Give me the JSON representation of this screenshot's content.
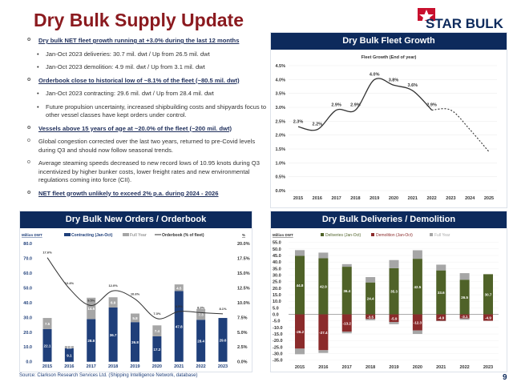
{
  "title": "Dry Bulk Supply Update",
  "logo": {
    "text": "STAR BULK",
    "colors": {
      "star": "#c8102e",
      "text": "#0d2a5c"
    }
  },
  "bullets": [
    {
      "level": 1,
      "emphasis": true,
      "text": "Dry bulk NET fleet growth running at +3.0% during the last 12 months"
    },
    {
      "level": 2,
      "text": "Jan-Oct 2023 deliveries: 30.7 mil. dwt / Up from 26.5 mil. dwt"
    },
    {
      "level": 2,
      "text": "Jan-Oct 2023 demolition: 4.9 mil. dwt / Up from 3.1 mil. dwt"
    },
    {
      "level": 1,
      "emphasis": true,
      "text": "Orderbook close to historical low of ~8.1% of the fleet (~80.5 mil. dwt)"
    },
    {
      "level": 2,
      "text": "Jan-Oct 2023 contracting: 29.6 mil. dwt / Up from 28.4 mil. dwt"
    },
    {
      "level": 2,
      "text": "Future propulsion uncertainty, increased shipbuilding costs and shipyards focus to other vessel classes have kept orders under control."
    },
    {
      "level": 1,
      "emphasis": true,
      "text": "Vessels above 15 years of age at ~20.0% of the fleet (~200 mil. dwt)"
    },
    {
      "level": 1,
      "text": "Global congestion corrected over the last two years, returned to pre-Covid levels during Q3 and should now follow seasonal trends."
    },
    {
      "level": 1,
      "text": "Average steaming speeds decreased to new record lows of 10.95 knots during Q3 incentivized by higher bunker costs, lower freight rates and new environmental regulations coming into force (CII)."
    },
    {
      "level": 1,
      "emphasis": true,
      "text": "NET fleet growth unlikely to exceed 2% p.a. during 2024 - 2026"
    }
  ],
  "panels": {
    "fleet": "Dry Bulk Fleet Growth",
    "orders": "Dry Bulk New Orders / Orderbook",
    "deliveries": "Dry Bulk Deliveries / Demolition"
  },
  "source": "Source: Clarkson Research Services Ltd. (Shipping Intelligence Network, database)",
  "page_number": "9",
  "chart_data": [
    {
      "type": "line",
      "title": "Fleet Growth (End of year)",
      "categories": [
        "2015",
        "2016",
        "2017",
        "2018",
        "2019",
        "2020",
        "2021",
        "2022",
        "2023",
        "2024",
        "2025"
      ],
      "values": [
        2.3,
        2.2,
        2.9,
        2.9,
        4.0,
        3.8,
        3.6,
        2.9,
        2.9,
        2.2,
        1.4
      ],
      "data_labels": [
        "2.3%",
        "2.2%",
        "2.9%",
        "2.9%",
        "4.0%",
        "3.8%",
        "3.6%",
        "2.9%",
        "",
        "",
        ""
      ],
      "projected_from": "2022",
      "ylim": [
        0,
        4.5
      ],
      "yticks": [
        "0.0%",
        "0.5%",
        "1.0%",
        "1.5%",
        "2.0%",
        "2.5%",
        "3.0%",
        "3.5%",
        "4.0%",
        "4.5%"
      ],
      "grid": true,
      "color": "#333333"
    },
    {
      "type": "bar",
      "ylabel": "Million DWT",
      "y2label": "%",
      "categories": [
        "2015",
        "2016",
        "2017",
        "2018",
        "2019",
        "2020",
        "2021",
        "2022",
        "2023"
      ],
      "legend": [
        "Contracting (Jan-Oct)",
        "Full Year",
        "Orderbook (% of fleet)"
      ],
      "legend_position": "top",
      "series": [
        {
          "name": "Contracting (Jan-Oct)",
          "values": [
            22.1,
            9.1,
            28.8,
            36.7,
            26.8,
            17.2,
            47.8,
            28.4,
            29.6
          ],
          "color": "#1f3f7a"
        },
        {
          "name": "Full Year",
          "values": [
            7.5,
            1.5,
            14.5,
            6.9,
            5.8,
            7.4,
            4.5,
            7.3,
            null
          ],
          "color": "#a6a6a6"
        },
        {
          "name": "Orderbook (% of fleet)",
          "axis": "right",
          "values": [
            17.6,
            12.4,
            9.5,
            12.0,
            10.6,
            7.3,
            8.5,
            8.3,
            8.1
          ],
          "labels": [
            "17.6%",
            "12.4%",
            "9.5%",
            "12.0%",
            "10.6%",
            "7.3%",
            "8.5%",
            "8.3%",
            "8.1%"
          ],
          "color": "#333333"
        }
      ],
      "ylim": [
        0,
        80
      ],
      "yticks": [
        "0.0",
        "10.0",
        "20.0",
        "30.0",
        "40.0",
        "50.0",
        "60.0",
        "70.0",
        "80.0"
      ],
      "y2lim": [
        0,
        20
      ],
      "y2ticks": [
        "0.0%",
        "2.5%",
        "5.0%",
        "7.5%",
        "10.0%",
        "12.5%",
        "15.0%",
        "17.5%",
        "20.0%"
      ]
    },
    {
      "type": "bar",
      "ylabel": "Million DWT",
      "categories": [
        "2015",
        "2016",
        "2017",
        "2018",
        "2019",
        "2020",
        "2021",
        "2022",
        "2023"
      ],
      "legend": [
        "Deliveries (Jan-Oct)",
        "Demolition (Jan-Oct)",
        "Full Year"
      ],
      "legend_position": "top",
      "series": [
        {
          "name": "Deliveries (Jan-Oct)",
          "values": [
            44.8,
            42.9,
            36.4,
            24.4,
            35.3,
            42.5,
            33.6,
            26.5,
            30.7
          ],
          "color": "#4f6228"
        },
        {
          "name": "Demolition (Jan-Oct)",
          "values": [
            -26.2,
            -27.4,
            -13.2,
            -3.5,
            -5.9,
            -12.3,
            -4.9,
            -3.1,
            -4.9
          ],
          "color": "#8b2b2b"
        },
        {
          "name": "Full Year",
          "deliveries_extra": [
            4.3,
            4.3,
            2.0,
            4.1,
            6.2,
            6.5,
            4.4,
            5.0,
            null
          ],
          "demolition_extra": [
            -4.3,
            -2.1,
            -1.3,
            -1.0,
            -1.6,
            -2.7,
            -0.3,
            -1.0,
            null
          ],
          "color": "#a6a6a6"
        }
      ],
      "ylim": [
        -35,
        55
      ],
      "yticks": [
        "-35.0",
        "-30.0",
        "-25.0",
        "-20.0",
        "-15.0",
        "-10.0",
        "-5.0",
        "0.0",
        "5.0",
        "10.0",
        "15.0",
        "20.0",
        "25.0",
        "30.0",
        "35.0",
        "40.0",
        "45.0",
        "50.0",
        "55.0"
      ]
    }
  ]
}
